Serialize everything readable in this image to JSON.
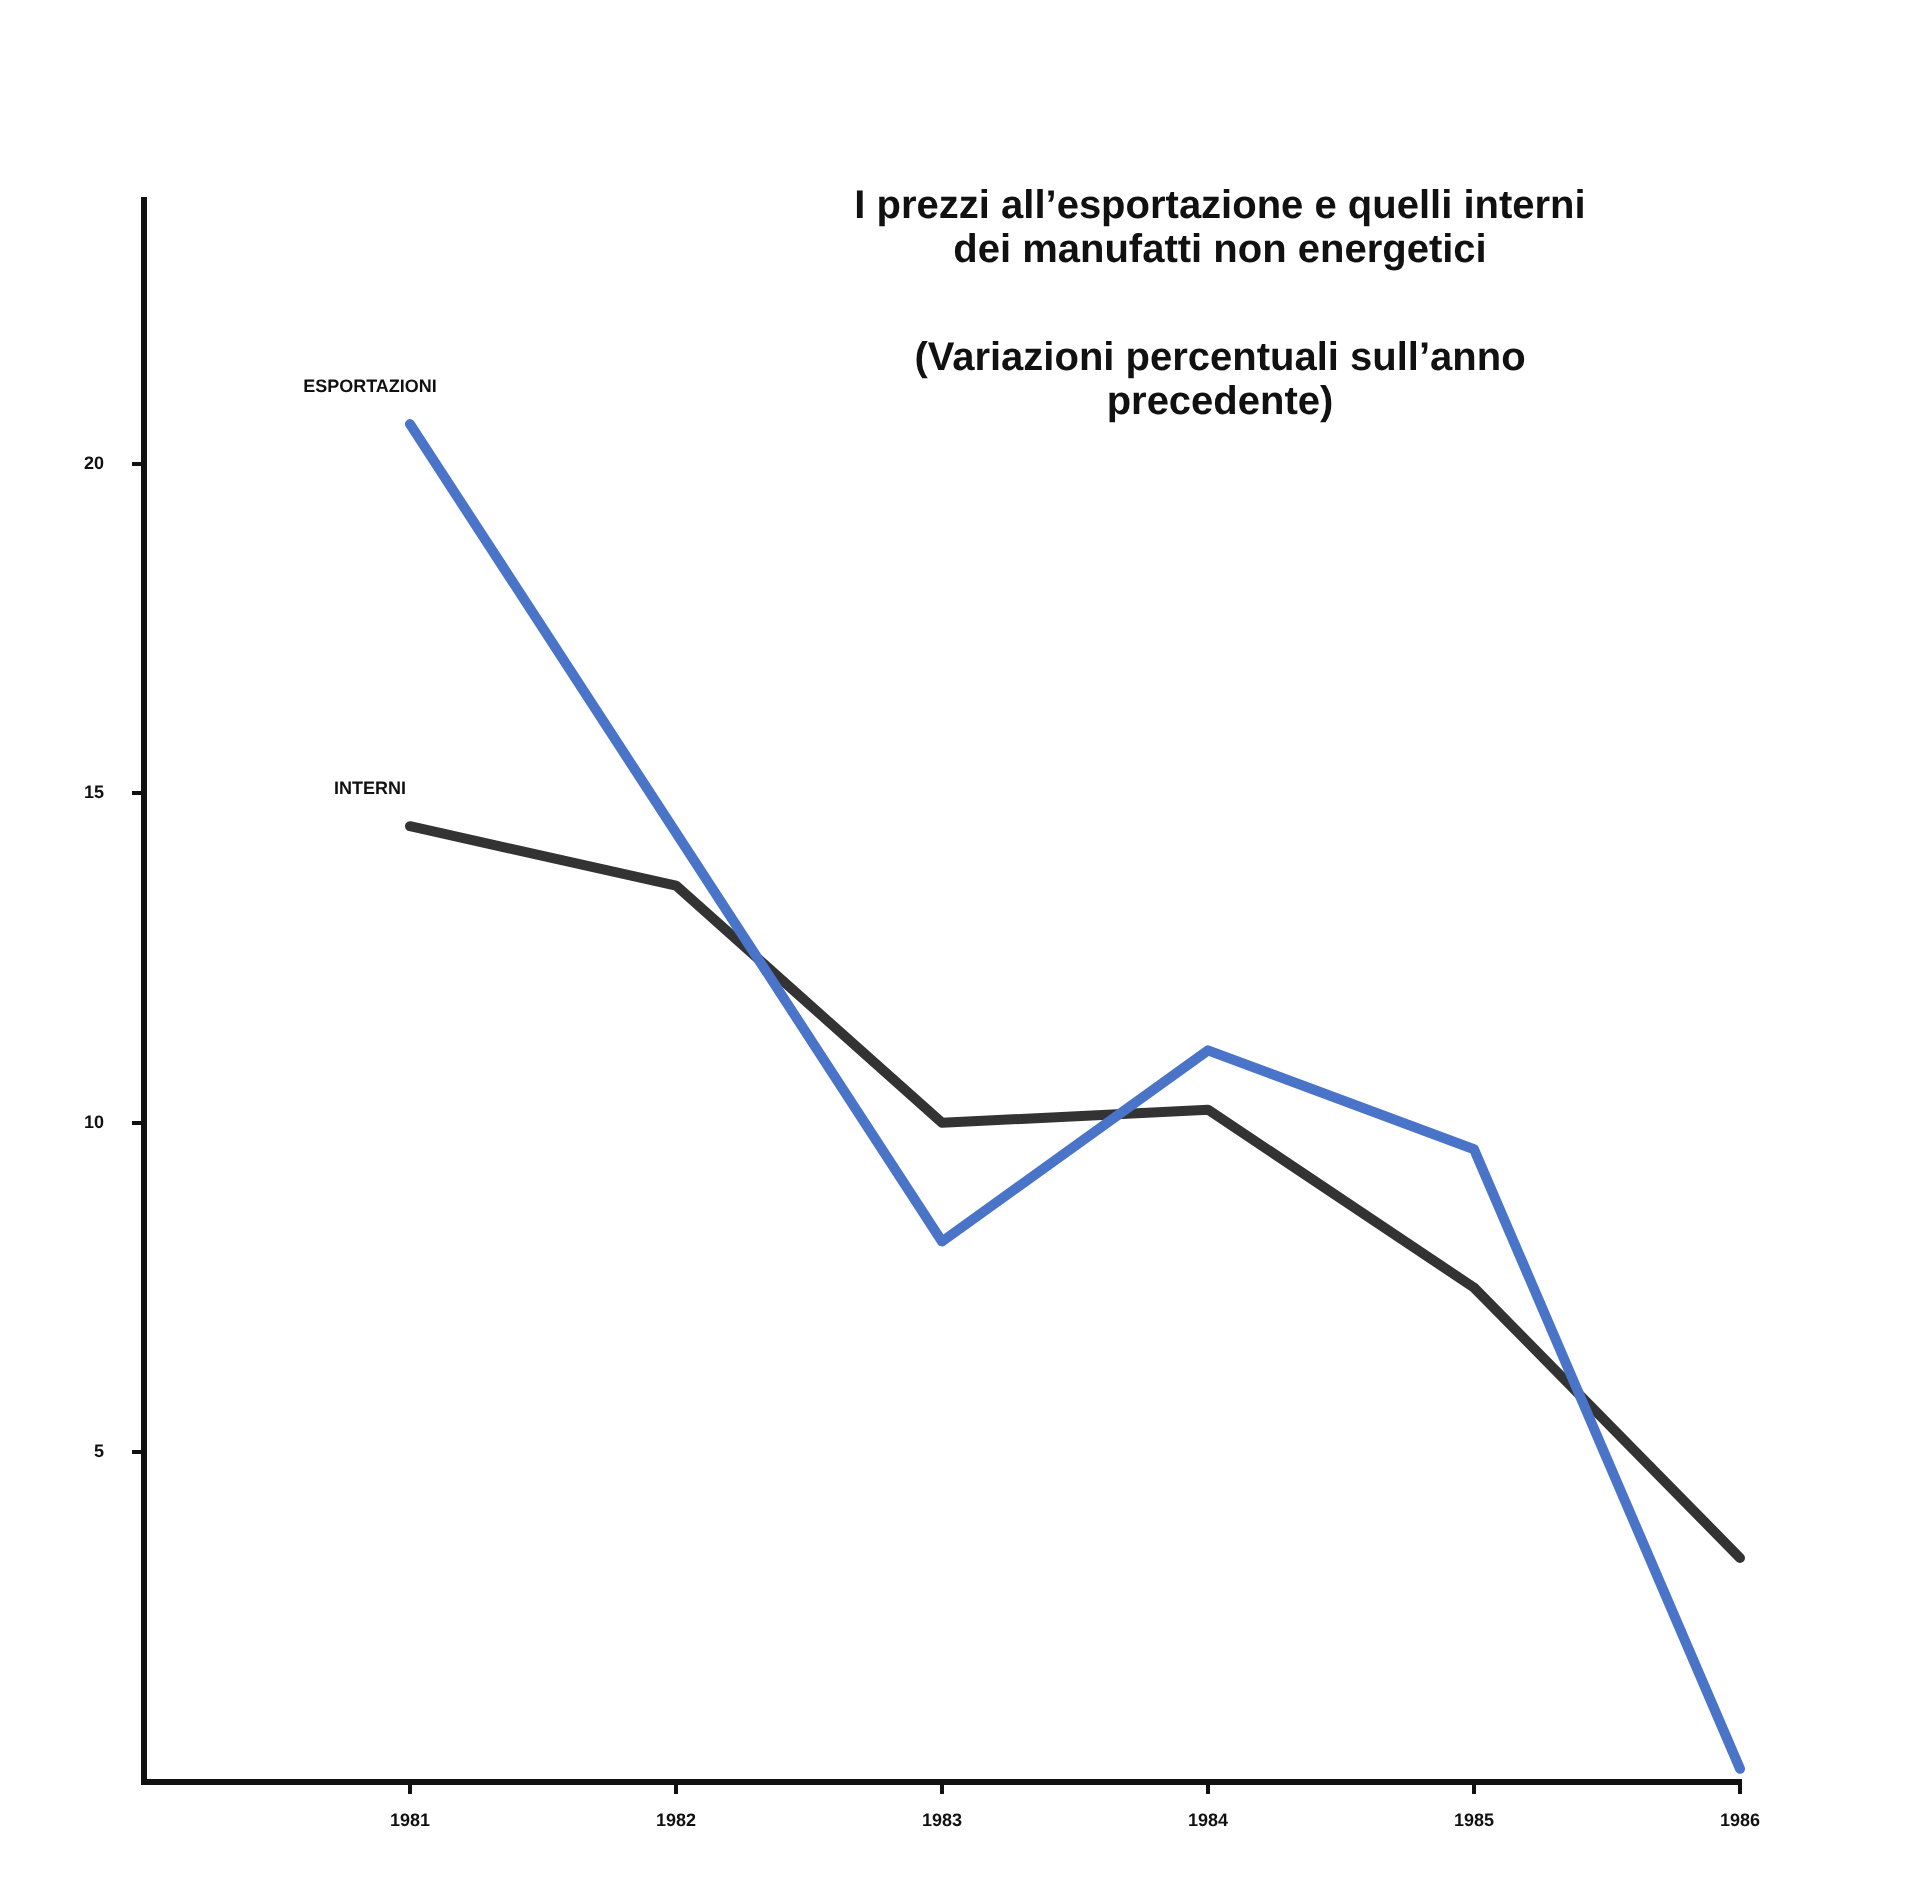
{
  "chart_data": {
    "type": "line",
    "title": "I prezzi all’esportazione e quelli interni dei manufatti non energetici",
    "subtitle": "(Variazioni percentuali sull’anno precedente)",
    "x": [
      1981,
      1982,
      1983,
      1984,
      1985,
      1986
    ],
    "series": [
      {
        "name": "ESPORTAZIONI",
        "color": "#4a74c8",
        "values": [
          20.6,
          14.4,
          8.2,
          11.1,
          9.6,
          0.2
        ]
      },
      {
        "name": "INTERNI",
        "color": "#333333",
        "values": [
          14.5,
          13.6,
          10.0,
          10.2,
          7.5,
          3.4
        ]
      }
    ],
    "xlim": [
      1980,
      1986
    ],
    "xticks": [
      1981,
      1982,
      1983,
      1984,
      1985,
      1986
    ],
    "ylim": [
      0,
      24
    ],
    "yticks": [
      5,
      10,
      15,
      20
    ],
    "grid": false,
    "legend": false,
    "marker": "none",
    "line_style": "solid"
  }
}
